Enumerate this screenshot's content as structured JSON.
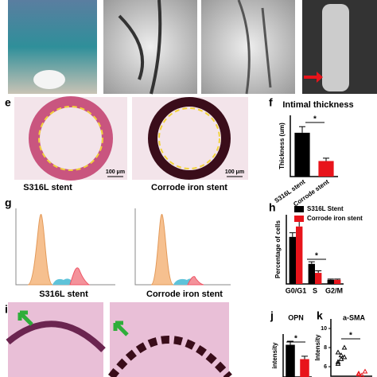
{
  "figure": {
    "panel_labels": [
      "e",
      "f",
      "g",
      "h",
      "i",
      "j",
      "k"
    ],
    "captions": [
      "S316L stent",
      "Corrode iron stent",
      "S316L stent",
      "Corrode iron stent"
    ],
    "scale_bars": [
      "100 μm",
      "100 μm"
    ]
  },
  "chart_data": [
    {
      "type": "bar",
      "title": "Intimal thickness",
      "y_label": "Thickness (um)",
      "categories": [
        "S316L stent",
        "Corrode stent"
      ],
      "values": [
        93,
        33
      ],
      "errors": [
        13,
        6
      ],
      "colors": [
        "#000000",
        "#e8141b"
      ],
      "ylim": [
        0,
        130
      ],
      "annotation": "*"
    },
    {
      "type": "grouped-bar",
      "y_label": "Percentage of cells",
      "categories": [
        "G0/G1",
        "S",
        "G2/M"
      ],
      "series": [
        {
          "name": "S316L Stent",
          "color": "#000000",
          "values": [
            68,
            29,
            6
          ],
          "errors": [
            6,
            3,
            1
          ]
        },
        {
          "name": "Corrode iron stent",
          "color": "#e8141b",
          "values": [
            83,
            16,
            6
          ],
          "errors": [
            8,
            3,
            1
          ]
        }
      ],
      "ylim": [
        0,
        100
      ],
      "annotation": "*"
    },
    {
      "type": "bar",
      "title": "OPN",
      "y_label": "intensity",
      "values": [
        9,
        5
      ],
      "errors": [
        1,
        0.8
      ],
      "colors": [
        "#000000",
        "#e8141b"
      ],
      "ylim": [
        0,
        12
      ],
      "annotation": "*"
    },
    {
      "type": "strip",
      "title": "a-SMA",
      "y_label": "Intensity",
      "series": [
        {
          "color": "#000000",
          "values": [
            7.5,
            6.8,
            7.0,
            6.5,
            7.2,
            8.0,
            6.3
          ]
        },
        {
          "color": "#e8141b",
          "values": [
            5.3,
            5.1,
            5.5,
            5.2
          ]
        }
      ],
      "ylim": [
        5,
        11
      ],
      "yticks": [
        6,
        8,
        10
      ],
      "annotation": "*"
    }
  ]
}
